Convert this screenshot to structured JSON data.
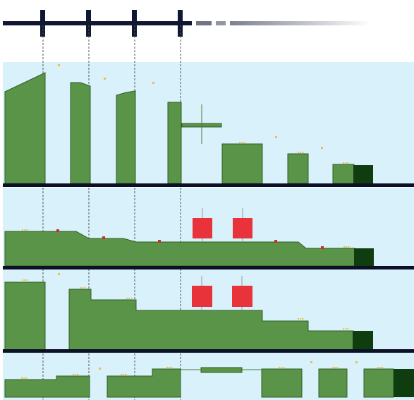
{
  "colors": {
    "background": "#ffffff",
    "sky": "#d9f1fb",
    "ground": "#5a9448",
    "ground_dark": "#0f3d10",
    "divider": "#0b1026",
    "hazard": "#e8333b",
    "coin": "#e8c14e",
    "timeline": "#101733",
    "guide": "#555555"
  },
  "timeline": {
    "marker_count": 4,
    "fade": true
  },
  "panels": [
    {
      "id": "lane-1",
      "terrain": "tall-columns",
      "has_cross_marker": true
    },
    {
      "id": "lane-2",
      "terrain": "low-slope",
      "hazards": 2
    },
    {
      "id": "lane-3",
      "terrain": "stepped-descent",
      "hazards": 2
    },
    {
      "id": "lane-4",
      "terrain": "short-blocks"
    }
  ]
}
